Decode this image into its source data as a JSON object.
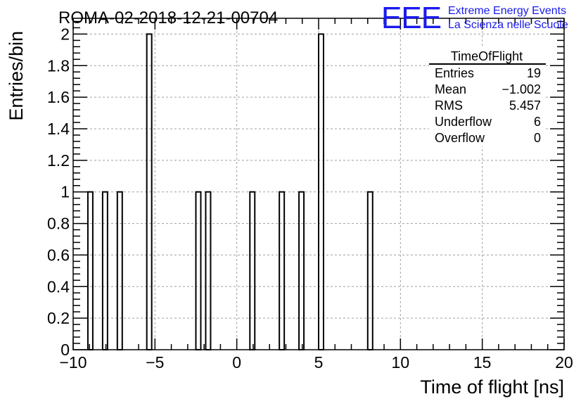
{
  "chart_data": {
    "type": "bar",
    "title": "ROMA-02-2018-12-21-00704",
    "xlabel": "Time of flight [ns]",
    "ylabel": "Entries/bin",
    "xlim": [
      -10,
      20
    ],
    "ylim": [
      0,
      2.1
    ],
    "grid": true,
    "bin_width": 0.3,
    "x_ticks": [
      -10,
      -5,
      0,
      5,
      10,
      15,
      20
    ],
    "x_tick_labels": [
      "−10",
      "−5",
      "0",
      "5",
      "10",
      "15",
      "20"
    ],
    "y_ticks": [
      0,
      0.2,
      0.4,
      0.6,
      0.8,
      1,
      1.2,
      1.4,
      1.6,
      1.8,
      2
    ],
    "y_tick_labels": [
      "0",
      "0.2",
      "0.4",
      "0.6",
      "0.8",
      "1",
      "1.2",
      "1.4",
      "1.6",
      "1.8",
      "2"
    ],
    "bins": [
      {
        "x": -9.1,
        "count": 1
      },
      {
        "x": -8.2,
        "count": 1
      },
      {
        "x": -7.3,
        "count": 1
      },
      {
        "x": -5.5,
        "count": 2
      },
      {
        "x": -2.5,
        "count": 1
      },
      {
        "x": -1.9,
        "count": 1
      },
      {
        "x": 0.8,
        "count": 1
      },
      {
        "x": 2.6,
        "count": 1
      },
      {
        "x": 3.8,
        "count": 1
      },
      {
        "x": 5.0,
        "count": 2
      },
      {
        "x": 8.0,
        "count": 1
      }
    ],
    "stats": {
      "name": "TimeOfFlight",
      "rows": [
        {
          "label": "Entries",
          "value": "19"
        },
        {
          "label": "Mean",
          "value": "−1.002"
        },
        {
          "label": "RMS",
          "value": "5.457"
        },
        {
          "label": "Underflow",
          "value": "6"
        },
        {
          "label": "Overflow",
          "value": "0"
        }
      ]
    }
  },
  "logo": {
    "text": "EEE",
    "line1": "Extreme Energy Events",
    "line2": "La Scienza nelle Scuole",
    "color": "#1a1aee"
  }
}
